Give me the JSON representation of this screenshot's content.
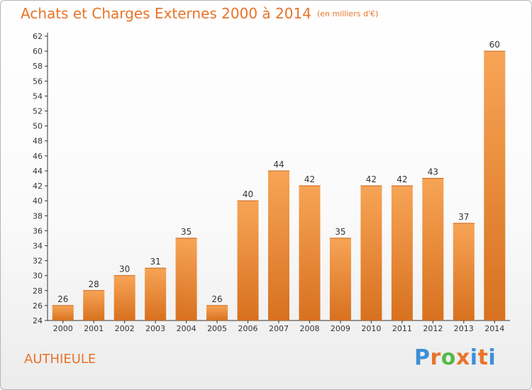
{
  "title": "Achats et Charges Externes 2000 à 2014",
  "title_unit": "(en milliers d'€)",
  "commune": "AUTHIEULE",
  "logo": {
    "text": "Proxiti",
    "letter_colors": [
      "#3d8fd6",
      "#e8742a",
      "#56b947",
      "#e8742a",
      "#3d8fd6",
      "#e8742a",
      "#3d8fd6"
    ]
  },
  "colors": {
    "accent": "#e8742a",
    "bar_light": "#f7a456",
    "bar_dark": "#d7711f",
    "axis": "#333333"
  },
  "chart_data": {
    "type": "bar",
    "title": "Achats et Charges Externes 2000 à 2014",
    "subtitle": "(en milliers d'€)",
    "xlabel": "",
    "ylabel": "",
    "ylim": [
      24,
      62
    ],
    "ytick_step": 2,
    "grid": false,
    "legend": "none",
    "categories": [
      "2000",
      "2001",
      "2002",
      "2003",
      "2004",
      "2005",
      "2006",
      "2007",
      "2008",
      "2009",
      "2010",
      "2011",
      "2012",
      "2013",
      "2014"
    ],
    "values": [
      26,
      28,
      30,
      31,
      35,
      26,
      40,
      44,
      42,
      35,
      42,
      42,
      43,
      37,
      60
    ]
  }
}
